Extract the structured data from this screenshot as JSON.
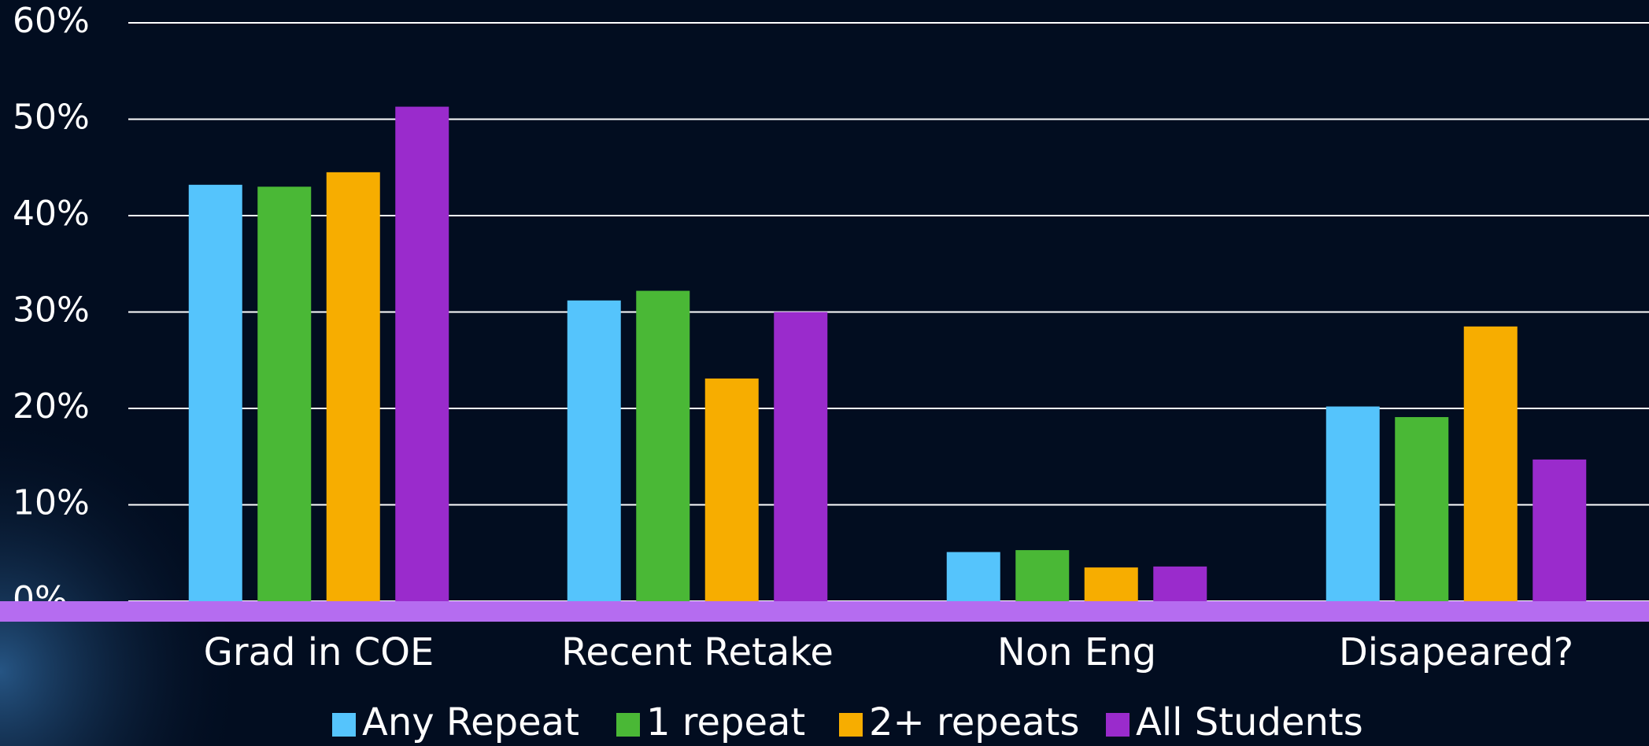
{
  "chart_data": {
    "type": "bar",
    "categories": [
      "Grad in COE",
      "Recent Retake",
      "Non Eng",
      "Disapeared?"
    ],
    "series": [
      {
        "name": "Any Repeat",
        "color": "#55c4fc",
        "values": [
          43.2,
          31.2,
          5.1,
          20.2
        ]
      },
      {
        "name": "1 repeat",
        "color": "#4ab836",
        "values": [
          43.0,
          32.2,
          5.3,
          19.1
        ]
      },
      {
        "name": "2+ repeats",
        "color": "#f7ad00",
        "values": [
          44.5,
          23.1,
          3.5,
          28.5
        ]
      },
      {
        "name": "All Students",
        "color": "#9a2bcc",
        "values": [
          51.3,
          30.0,
          3.6,
          14.7
        ]
      }
    ],
    "ylim": [
      0,
      60
    ],
    "yticks": [
      {
        "value": 0,
        "label": "0%"
      },
      {
        "value": 10,
        "label": "10%"
      },
      {
        "value": 20,
        "label": "20%"
      },
      {
        "value": 30,
        "label": "30%"
      },
      {
        "value": 40,
        "label": "40%"
      },
      {
        "value": 50,
        "label": "50%"
      },
      {
        "value": 60,
        "label": "60%"
      }
    ],
    "grid": true,
    "legend": "bottom"
  }
}
